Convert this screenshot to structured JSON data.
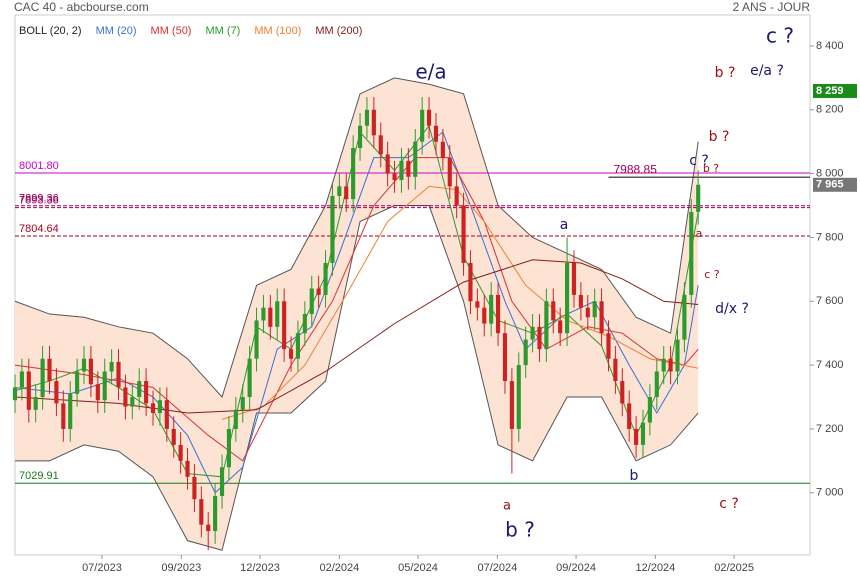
{
  "chart_data": {
    "type": "candlestick",
    "title": "CAC 40 - abcbourse.com",
    "subtitle": "2 ANS - JOUR",
    "xlim": [
      0,
      115.2
    ],
    "xticks": [
      {
        "value": 12.6,
        "label": "07/2023"
      },
      {
        "value": 24.1,
        "label": "09/2023"
      },
      {
        "value": 35.5,
        "label": "12/2023"
      },
      {
        "value": 47,
        "label": "02/2024"
      },
      {
        "value": 58.4,
        "label": "05/2024"
      },
      {
        "value": 69.9,
        "label": "07/2024"
      },
      {
        "value": 81.3,
        "label": "09/2024"
      },
      {
        "value": 92.8,
        "label": "12/2024"
      },
      {
        "value": 104.2,
        "label": "02/2025"
      }
    ],
    "ylim": [
      6805,
      8497
    ],
    "yticks": [
      {
        "value": 7000,
        "label": "7 000"
      },
      {
        "value": 7200,
        "label": "7 200"
      },
      {
        "value": 7400,
        "label": "7 400"
      },
      {
        "value": 7600,
        "label": "7 600"
      },
      {
        "value": 7800,
        "label": "7 800"
      },
      {
        "value": 8000,
        "label": "8 000"
      },
      {
        "value": 8200,
        "label": "8 200"
      },
      {
        "value": 8400,
        "label": "8 400"
      }
    ],
    "up_color": "#2e9a2e",
    "down_color": "#cc2222",
    "open": [
      7290,
      7330,
      7380,
      7260,
      7300,
      7420,
      7350,
      7280,
      7200,
      7310,
      7380,
      7420,
      7340,
      7290,
      7380,
      7410,
      7330,
      7270,
      7300,
      7350,
      7280,
      7250,
      7290,
      7200,
      7150,
      7100,
      7050,
      6980,
      6900,
      6880,
      6990,
      7080,
      7200,
      7260,
      7300,
      7420,
      7540,
      7580,
      7520,
      7600,
      7450,
      7420,
      7500,
      7560,
      7640,
      7620,
      7720,
      7930,
      7960,
      7920,
      8080,
      8150,
      8200,
      8120,
      8060,
      8000,
      7980,
      8040,
      7990,
      8100,
      8200,
      8150,
      8100,
      8050,
      7960,
      7900,
      7720,
      7600,
      7580,
      7530,
      7620,
      7500,
      7350,
      7200,
      7400,
      7480,
      7520,
      7450,
      7600,
      7540,
      7500,
      7720,
      7620,
      7580,
      7550,
      7600,
      7500,
      7420,
      7350,
      7280,
      7200,
      7150,
      7220,
      7300,
      7380,
      7420,
      7380,
      7480,
      7620,
      7880
    ],
    "high": [
      7370,
      7420,
      7420,
      7340,
      7460,
      7460,
      7390,
      7320,
      7350,
      7420,
      7460,
      7460,
      7380,
      7420,
      7450,
      7450,
      7370,
      7340,
      7390,
      7390,
      7320,
      7330,
      7330,
      7240,
      7190,
      7140,
      7090,
      7020,
      6940,
      7030,
      7120,
      7240,
      7300,
      7340,
      7460,
      7580,
      7620,
      7620,
      7640,
      7640,
      7490,
      7540,
      7600,
      7680,
      7680,
      7760,
      7970,
      8000,
      8000,
      8120,
      8190,
      8240,
      8240,
      8160,
      8100,
      8040,
      8080,
      8080,
      8140,
      8240,
      8240,
      8190,
      8140,
      8090,
      8000,
      7940,
      7760,
      7640,
      7620,
      7660,
      7660,
      7540,
      7390,
      7440,
      7520,
      7560,
      7560,
      7640,
      7640,
      7580,
      7800,
      7760,
      7660,
      7620,
      7640,
      7640,
      7540,
      7460,
      7390,
      7320,
      7240,
      7260,
      7340,
      7420,
      7460,
      7460,
      7520,
      7660,
      7920,
      8010
    ],
    "low": [
      7250,
      7290,
      7220,
      7220,
      7260,
      7310,
      7240,
      7160,
      7160,
      7270,
      7340,
      7300,
      7250,
      7250,
      7340,
      7290,
      7230,
      7230,
      7260,
      7240,
      7210,
      7210,
      7160,
      7110,
      7060,
      7010,
      6940,
      6860,
      6820,
      6840,
      6950,
      7040,
      7160,
      7220,
      7260,
      7380,
      7500,
      7480,
      7480,
      7410,
      7380,
      7380,
      7460,
      7520,
      7580,
      7580,
      7680,
      7890,
      7880,
      7880,
      8040,
      8110,
      8080,
      8020,
      7960,
      7940,
      7940,
      7950,
      7950,
      8060,
      8110,
      8060,
      8010,
      7920,
      7860,
      7680,
      7560,
      7540,
      7490,
      7490,
      7460,
      7310,
      7060,
      7160,
      7360,
      7440,
      7410,
      7410,
      7500,
      7460,
      7460,
      7580,
      7540,
      7510,
      7510,
      7460,
      7380,
      7310,
      7240,
      7160,
      7110,
      7110,
      7180,
      7260,
      7340,
      7340,
      7340,
      7440,
      7580,
      7840
    ],
    "close": [
      7330,
      7380,
      7260,
      7300,
      7420,
      7350,
      7280,
      7200,
      7310,
      7380,
      7420,
      7340,
      7290,
      7380,
      7410,
      7330,
      7270,
      7300,
      7350,
      7280,
      7250,
      7290,
      7200,
      7150,
      7100,
      7050,
      6980,
      6900,
      6880,
      6990,
      7080,
      7200,
      7260,
      7300,
      7420,
      7540,
      7580,
      7520,
      7600,
      7450,
      7420,
      7500,
      7560,
      7640,
      7620,
      7720,
      7930,
      7960,
      7920,
      8080,
      8150,
      8200,
      8120,
      8060,
      8000,
      7980,
      8040,
      7990,
      8100,
      8200,
      8150,
      8100,
      8050,
      7960,
      7900,
      7720,
      7600,
      7580,
      7530,
      7620,
      7500,
      7350,
      7200,
      7400,
      7480,
      7520,
      7450,
      7600,
      7540,
      7500,
      7720,
      7620,
      7580,
      7550,
      7600,
      7500,
      7420,
      7350,
      7280,
      7200,
      7150,
      7220,
      7300,
      7380,
      7420,
      7380,
      7480,
      7620,
      7880,
      7965
    ],
    "bollinger": {
      "name": "BOLL (20, 2)",
      "color": "#555555",
      "fill": "#fde3d3",
      "x": [
        0,
        5,
        10,
        15,
        20,
        25,
        30,
        35,
        40,
        45,
        50,
        55,
        60,
        65,
        70,
        75,
        80,
        85,
        90,
        95,
        99
      ],
      "upper": [
        7600,
        7560,
        7550,
        7520,
        7500,
        7420,
        7300,
        7650,
        7700,
        7900,
        8250,
        8300,
        8280,
        8250,
        7900,
        7800,
        7750,
        7700,
        7550,
        7500,
        8100
      ],
      "lower": [
        7100,
        7100,
        7150,
        7130,
        7050,
        6850,
        6820,
        7250,
        7250,
        7350,
        7850,
        7900,
        7900,
        7600,
        7150,
        7100,
        7300,
        7300,
        7100,
        7150,
        7250
      ]
    },
    "series": [
      {
        "name": "MM (20)",
        "color": "#3b6fd8",
        "x": [
          0,
          8,
          15,
          20,
          25,
          29,
          33,
          38,
          43,
          47,
          52,
          57,
          62,
          66,
          71,
          74,
          79,
          84,
          89,
          93,
          97,
          99
        ],
        "values": [
          7330,
          7310,
          7360,
          7300,
          7180,
          7000,
          7080,
          7450,
          7520,
          7750,
          8050,
          8050,
          8130,
          7900,
          7600,
          7450,
          7550,
          7600,
          7400,
          7250,
          7400,
          7650
        ]
      },
      {
        "name": "MM (50)",
        "color": "#dd3030",
        "x": [
          0,
          10,
          20,
          28,
          33,
          40,
          46,
          52,
          58,
          63,
          68,
          72,
          77,
          83,
          88,
          93,
          97,
          99
        ],
        "values": [
          7400,
          7370,
          7330,
          7180,
          7100,
          7400,
          7600,
          7900,
          8050,
          8050,
          7850,
          7600,
          7450,
          7520,
          7500,
          7420,
          7400,
          7450
        ]
      },
      {
        "name": "MM (7)",
        "color": "#2e9a2e",
        "x": [
          0,
          5,
          10,
          15,
          20,
          25,
          30,
          35,
          40,
          45,
          50,
          55,
          60,
          65,
          70,
          75,
          80,
          85,
          90,
          95,
          99
        ],
        "values": [
          7320,
          7350,
          7390,
          7330,
          7260,
          7060,
          7050,
          7520,
          7450,
          7680,
          8130,
          8010,
          8150,
          7740,
          7540,
          7500,
          7560,
          7460,
          7180,
          7400,
          7880
        ]
      },
      {
        "name": "MM (100)",
        "color": "#f08030",
        "x": [
          30,
          36,
          42,
          48,
          54,
          60,
          64,
          68,
          74,
          80,
          86,
          92,
          99
        ],
        "values": [
          7230,
          7270,
          7400,
          7620,
          7850,
          7960,
          7950,
          7850,
          7650,
          7540,
          7490,
          7420,
          7390
        ]
      },
      {
        "name": "MM (200)",
        "color": "#8b1a1a",
        "x": [
          0,
          15,
          25,
          35,
          45,
          55,
          65,
          75,
          82,
          88,
          94,
          99
        ],
        "values": [
          7300,
          7280,
          7250,
          7260,
          7380,
          7530,
          7660,
          7730,
          7720,
          7670,
          7600,
          7590
        ]
      }
    ],
    "levels": [
      {
        "value": 8001.8,
        "label": "8001.80",
        "color": "#cc00cc",
        "dash": false
      },
      {
        "value": 7899.36,
        "label": "7899.36",
        "color": "#a0005a",
        "dash": true
      },
      {
        "value": 7893.36,
        "label": "7893.36",
        "color": "#a0005a",
        "dash": true
      },
      {
        "value": 7804.64,
        "label": "7804.64",
        "color": "#b00020",
        "dash": true
      },
      {
        "value": 7029.91,
        "label": "7029.91",
        "color": "#1a7a1a",
        "dash": false
      }
    ],
    "resistance": {
      "value": 7988.85,
      "label": "7988.85",
      "color": "#222222",
      "x": [
        86,
        115.2
      ]
    },
    "badges": [
      {
        "value": 8259,
        "label": "8 259",
        "color": "#1a8a1a"
      },
      {
        "value": 7965,
        "label": "7 965",
        "color": "#777777"
      }
    ],
    "annotations": [
      "e/a",
      "c ?",
      "b ?",
      "e/a ?",
      "b ?",
      "c ?",
      "b ?",
      "a",
      "c ?",
      "d/x ?",
      "a",
      "a",
      "b ?",
      "b",
      "c ?"
    ]
  }
}
